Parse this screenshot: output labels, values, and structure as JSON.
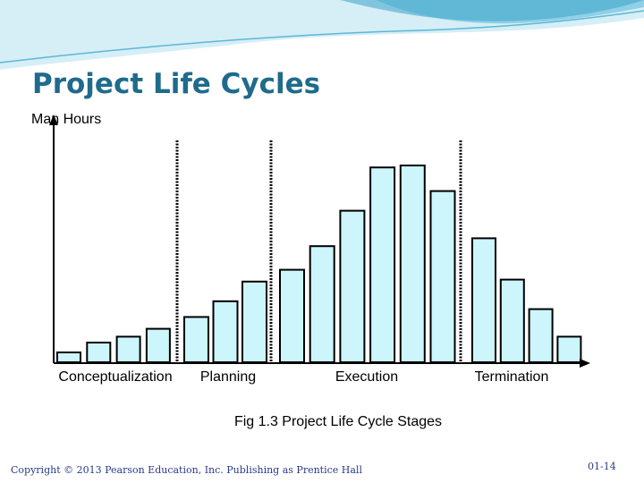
{
  "slide": {
    "title": "Project Life Cycles",
    "copyright": "Copyright © 2013 Pearson Education, Inc. Publishing as Prentice Hall",
    "page_number": "01-14"
  },
  "colors": {
    "title": "#1f6b8c",
    "bar_fill": "#ccf5fc",
    "bar_stroke": "#000000",
    "wave_light": "#d6eef6",
    "wave_mid": "#8fd0e6",
    "wave_dark": "#3aa4c8"
  },
  "chart_data": {
    "type": "bar",
    "title": "",
    "caption": "Fig 1.3 Project Life Cycle Stages",
    "ylabel": "Man Hours",
    "xlabel": "",
    "ylim": [
      0,
      100
    ],
    "stages": [
      "Conceptualization",
      "Planning",
      "Execution",
      "Termination"
    ],
    "series": [
      {
        "stage": "Conceptualization",
        "values": [
          5,
          10,
          13,
          17
        ]
      },
      {
        "stage": "Planning",
        "values": [
          23,
          31,
          41
        ]
      },
      {
        "stage": "Execution",
        "values": [
          47,
          59,
          77,
          99,
          100,
          87
        ]
      },
      {
        "stage": "Termination",
        "values": [
          63,
          42,
          27,
          13
        ]
      }
    ],
    "stage_dividers": true
  }
}
